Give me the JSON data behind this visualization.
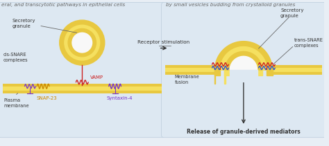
{
  "bg_color": "#e8eef5",
  "panel_bg": "#dde8f2",
  "membrane_outer": "#e8c840",
  "membrane_inner": "#f5e060",
  "membrane_dark": "#d4b030",
  "granule_white": "#f8f8f8",
  "text_color": "#333333",
  "vamp_color": "#cc2222",
  "snap23_color": "#cc8800",
  "syntaxin_color": "#7733cc",
  "snare_red": "#cc2222",
  "snare_blue": "#3355cc",
  "header_left": "eral, and transcytotic pathways in epithelial cells",
  "header_right": "by small vesicles budding from crystalloid granules",
  "label_secretory_granule_left": "Secretory\ngranule",
  "label_cis_snare": "cis-SNARE\ncomplexes",
  "label_vamp": "VAMP",
  "label_snap23": "SNAP-23",
  "label_syntaxin": "Syntaxin-4",
  "label_plasma_membrane": "Plasma\nmembrane",
  "label_receptor_stimulation": "Receptor stimulation",
  "label_secretory_granule_right": "Secretory\ngranule",
  "label_trans_snare": "trans-SNARE\ncomplexes",
  "label_membrane_fusion": "Membrane\nfusion",
  "label_release": "Release of granule-derived mediators",
  "fig_width": 4.74,
  "fig_height": 2.11,
  "dpi": 100
}
